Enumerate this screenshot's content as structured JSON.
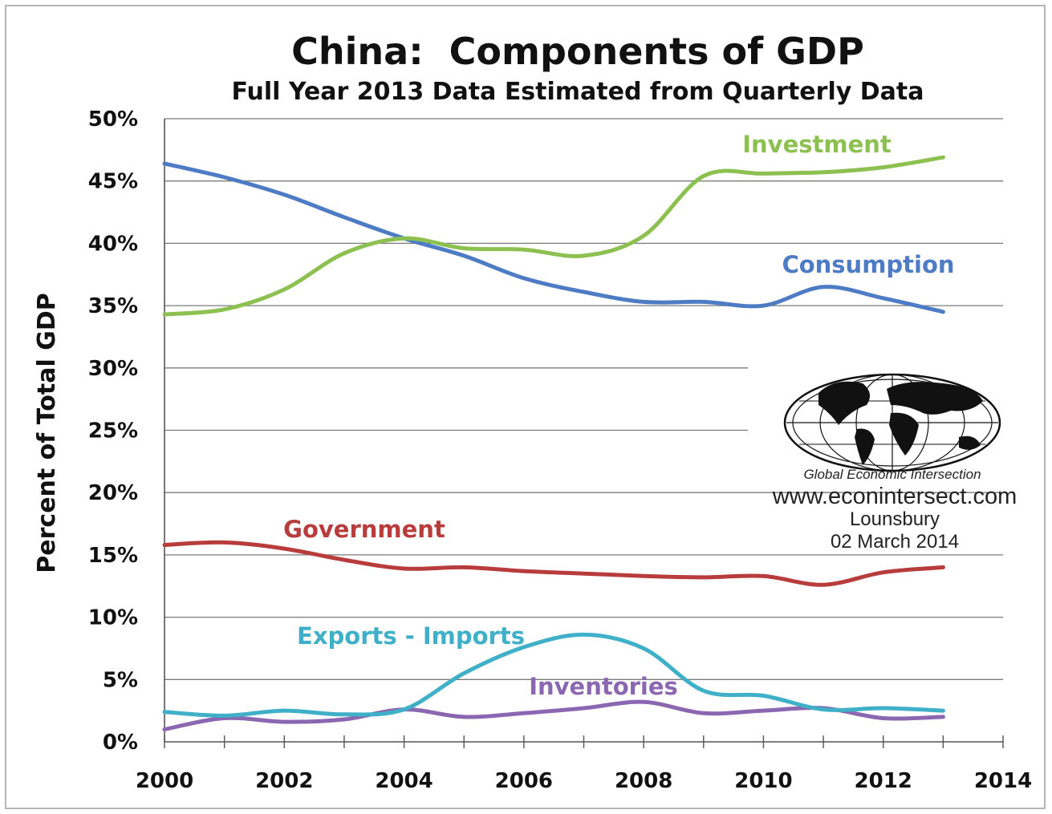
{
  "chart_data": {
    "type": "line",
    "title": "China:  Components of GDP",
    "subtitle": "Full Year 2013 Data Estimated from Quarterly Data",
    "xlabel": "",
    "ylabel": "Percent of Total GDP",
    "xlim": [
      2000,
      2014
    ],
    "ylim": [
      0,
      50
    ],
    "x_ticks": [
      "2000",
      "2002",
      "2004",
      "2006",
      "2008",
      "2010",
      "2012",
      "2014"
    ],
    "y_ticks": [
      "0%",
      "5%",
      "10%",
      "15%",
      "20%",
      "25%",
      "30%",
      "35%",
      "40%",
      "45%",
      "50%"
    ],
    "grid": true,
    "x": [
      2000,
      2001,
      2002,
      2003,
      2004,
      2005,
      2006,
      2007,
      2008,
      2009,
      2010,
      2011,
      2012,
      2013
    ],
    "series": [
      {
        "name": "Investment",
        "color": "#8cc050",
        "values": [
          34.3,
          34.7,
          36.3,
          39.2,
          40.4,
          39.6,
          39.5,
          39.0,
          40.6,
          45.4,
          45.6,
          45.7,
          46.1,
          46.9
        ]
      },
      {
        "name": "Consumption",
        "color": "#4e7cc4",
        "values": [
          46.4,
          45.3,
          43.9,
          42.1,
          40.4,
          39.0,
          37.2,
          36.1,
          35.3,
          35.3,
          35.0,
          36.5,
          35.6,
          34.5
        ]
      },
      {
        "name": "Government",
        "color": "#b83c3c",
        "values": [
          15.8,
          16.0,
          15.5,
          14.6,
          13.9,
          14.0,
          13.7,
          13.5,
          13.3,
          13.2,
          13.3,
          12.6,
          13.6,
          14.0
        ]
      },
      {
        "name": "Exports - Imports",
        "color": "#3fb0c8",
        "values": [
          2.4,
          2.1,
          2.5,
          2.2,
          2.6,
          5.5,
          7.6,
          8.6,
          7.5,
          4.1,
          3.7,
          2.6,
          2.7,
          2.5
        ]
      },
      {
        "name": "Inventories",
        "color": "#8a67b0",
        "values": [
          1.0,
          1.9,
          1.6,
          1.8,
          2.6,
          2.0,
          2.3,
          2.7,
          3.2,
          2.3,
          2.5,
          2.7,
          1.9,
          2.0
        ]
      }
    ]
  },
  "watermark": {
    "brand": "Global Economic Intersection",
    "url": "www.econintersect.com",
    "author": "Lounsbury",
    "date": "02 March 2014"
  }
}
